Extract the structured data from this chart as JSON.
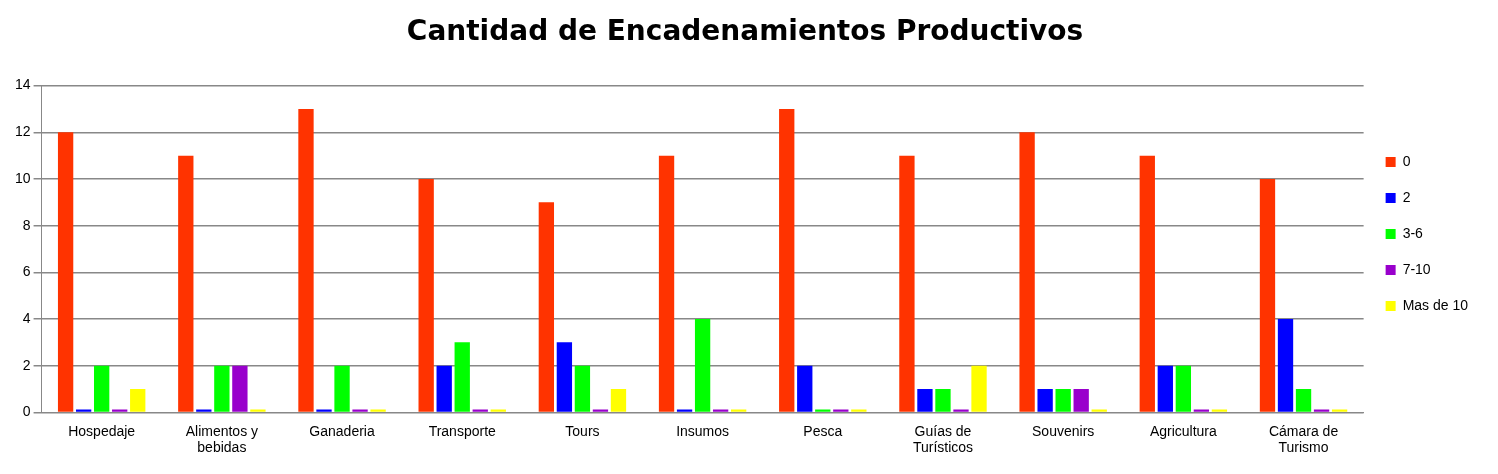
{
  "chart_data": {
    "type": "bar",
    "title": "Cantidad de Encadenamientos Productivos",
    "categories": [
      "Hospedaje",
      "Alimentos y bebidas",
      "Ganaderia",
      "Transporte",
      "Tours",
      "Insumos",
      "Pesca",
      "Guías de Turísticos",
      "Souvenirs",
      "Agricultura",
      "Cámara de Turismo"
    ],
    "series": [
      {
        "name": "0",
        "color": "#ff3300",
        "values": [
          12,
          11,
          13,
          10,
          9,
          11,
          13,
          11,
          12,
          11,
          10
        ]
      },
      {
        "name": "2",
        "color": "#0000ff",
        "values": [
          0,
          0,
          0,
          2,
          3,
          0,
          2,
          1,
          1,
          2,
          4
        ]
      },
      {
        "name": "3-6",
        "color": "#00ff00",
        "values": [
          2,
          2,
          2,
          3,
          2,
          4,
          0,
          1,
          1,
          2,
          1
        ]
      },
      {
        "name": "7-10",
        "color": "#9900cc",
        "values": [
          0,
          2,
          0,
          0,
          0,
          0,
          0,
          0,
          1,
          0,
          0
        ]
      },
      {
        "name": "Mas de 10",
        "color": "#ffff00",
        "values": [
          1,
          0,
          0,
          0,
          1,
          0,
          0,
          2,
          0,
          0,
          0
        ]
      }
    ],
    "ylim": [
      0,
      14
    ],
    "yticks": [
      0,
      2,
      4,
      6,
      8,
      10,
      12,
      14
    ],
    "grid": "y",
    "legend": "right"
  }
}
